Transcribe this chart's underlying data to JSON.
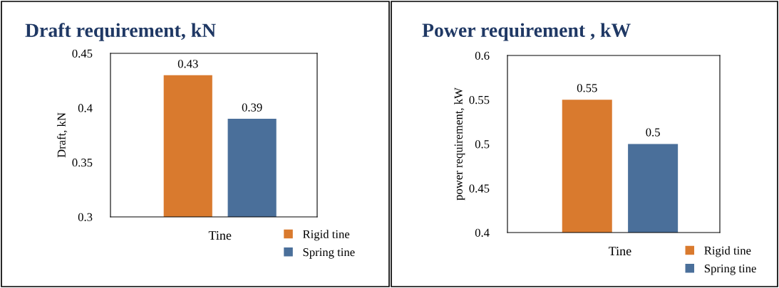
{
  "chart_data": [
    {
      "type": "bar",
      "title": "Draft requirement, kN",
      "ylabel": "Draft, kN",
      "categories": [
        "Tine"
      ],
      "series": [
        {
          "name": "Rigid tine",
          "color": "#d97a2e",
          "values": [
            0.43
          ]
        },
        {
          "name": "Spring tine",
          "color": "#4a6f9a",
          "values": [
            0.39
          ]
        }
      ],
      "ylim": [
        0.3,
        0.45
      ],
      "yticks": [
        0.3,
        0.35,
        0.4,
        0.45
      ],
      "data_labels": true,
      "grid": false,
      "legend": "bottom right"
    },
    {
      "type": "bar",
      "title": "Power requirement , kW",
      "ylabel": "power requirement, kW",
      "categories": [
        "Tine"
      ],
      "series": [
        {
          "name": "Rigid tine",
          "color": "#d97a2e",
          "values": [
            0.55
          ]
        },
        {
          "name": "Spring tine",
          "color": "#4a6f9a",
          "values": [
            0.5
          ]
        }
      ],
      "ylim": [
        0.4,
        0.6
      ],
      "yticks": [
        0.4,
        0.45,
        0.5,
        0.55,
        0.6
      ],
      "data_labels": true,
      "grid": false,
      "legend": "bottom right"
    }
  ]
}
